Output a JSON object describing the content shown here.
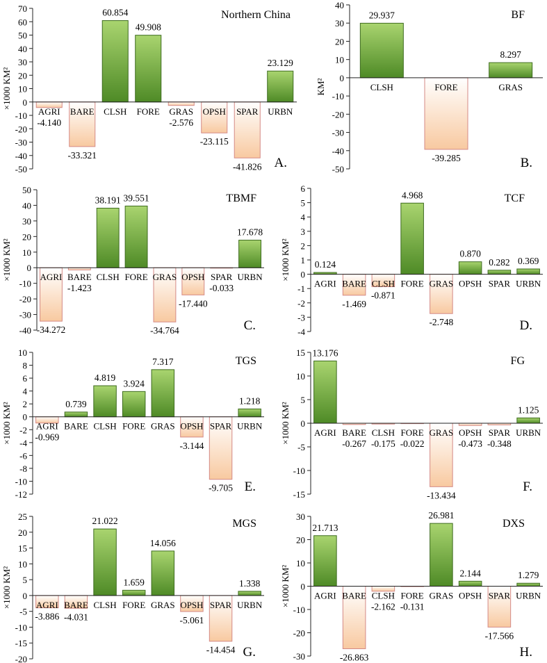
{
  "chart_data": [
    {
      "type": "bar",
      "title": "Northern China",
      "panel_letter": "A.",
      "ylabel": "×1000 KM²",
      "ylim": [
        -50,
        70
      ],
      "ytick_step": 10,
      "categories": [
        "AGRI",
        "BARE",
        "CLSH",
        "FORE",
        "GRAS",
        "OPSH",
        "SPAR",
        "URBN"
      ],
      "values": [
        -4.14,
        -33.321,
        60.854,
        49.908,
        -2.576,
        -23.115,
        -41.826,
        23.129
      ],
      "data_labels": [
        "-4.140",
        "-33.321",
        "60.854",
        "49.908",
        "-2.576",
        "-23.115",
        "-41.826",
        "23.129"
      ]
    },
    {
      "type": "bar",
      "title": "BF",
      "panel_letter": "B.",
      "ylabel": "KM²",
      "ylim": [
        -50,
        40
      ],
      "ytick_step": 10,
      "categories": [
        "CLSH",
        "FORE",
        "GRAS"
      ],
      "values": [
        29.937,
        -39.285,
        8.297
      ],
      "data_labels": [
        "29.937",
        "-39.285",
        "8.297"
      ]
    },
    {
      "type": "bar",
      "title": "TBMF",
      "panel_letter": "C.",
      "ylabel": "×1000 KM²",
      "ylim": [
        -40,
        50
      ],
      "ytick_step": 10,
      "categories": [
        "AGRI",
        "BARE",
        "CLSH",
        "FORE",
        "GRAS",
        "OPSH",
        "SPAR",
        "URBN"
      ],
      "values": [
        -34.272,
        -1.423,
        38.191,
        39.551,
        -34.764,
        -17.44,
        -0.033,
        17.678
      ],
      "data_labels": [
        "-34.272",
        "-1.423",
        "38.191",
        "39.551",
        "-34.764",
        "-17.440",
        "-0.033",
        "17.678"
      ]
    },
    {
      "type": "bar",
      "title": "TCF",
      "panel_letter": "D.",
      "ylabel": "×1000 KM²",
      "ylim": [
        -4,
        6
      ],
      "ytick_step": 1,
      "categories": [
        "AGRI",
        "BARE",
        "CLSH",
        "FORE",
        "GRAS",
        "OPSH",
        "SPAR",
        "URBN"
      ],
      "values": [
        0.124,
        -1.469,
        -0.871,
        4.968,
        -2.748,
        0.87,
        0.282,
        0.369
      ],
      "data_labels": [
        "0.124",
        "-1.469",
        "-0.871",
        "4.968",
        "-2.748",
        "0.870",
        "0.282",
        "0.369"
      ]
    },
    {
      "type": "bar",
      "title": "TGS",
      "panel_letter": "E.",
      "ylabel": "×1000 KM²",
      "ylim": [
        -12,
        10
      ],
      "ytick_step": 2,
      "categories": [
        "AGRI",
        "BARE",
        "CLSH",
        "FORE",
        "GRAS",
        "OPSH",
        "SPAR",
        "URBN"
      ],
      "values": [
        -0.969,
        0.739,
        4.819,
        3.924,
        7.317,
        -3.144,
        -9.705,
        1.218
      ],
      "data_labels": [
        "-0.969",
        "0.739",
        "4.819",
        "3.924",
        "7.317",
        "-3.144",
        "-9.705",
        "1.218"
      ]
    },
    {
      "type": "bar",
      "title": "FG",
      "panel_letter": "F.",
      "ylabel": "×1000 KM²",
      "ylim": [
        -15,
        15
      ],
      "ytick_step": 5,
      "categories": [
        "AGRI",
        "BARE",
        "CLSH",
        "FORE",
        "GRAS",
        "OPSH",
        "SPAR",
        "URBN"
      ],
      "values": [
        13.176,
        -0.267,
        -0.175,
        -0.022,
        -13.434,
        -0.473,
        -0.348,
        1.125
      ],
      "data_labels": [
        "13.176",
        "-0.267",
        "-0.175",
        "-0.022",
        "-13.434",
        "-0.473",
        "-0.348",
        "1.125"
      ]
    },
    {
      "type": "bar",
      "title": "MGS",
      "panel_letter": "G.",
      "ylabel": "×1000 KM²",
      "ylim": [
        -20,
        25
      ],
      "ytick_step": 5,
      "categories": [
        "AGRI",
        "BARE",
        "CLSH",
        "FORE",
        "GRAS",
        "OPSH",
        "SPAR",
        "URBN"
      ],
      "values": [
        -3.886,
        -4.031,
        21.022,
        1.659,
        14.056,
        -5.061,
        -14.454,
        1.338
      ],
      "data_labels": [
        "-3.886",
        "-4.031",
        "21.022",
        "1.659",
        "14.056",
        "-5.061",
        "-14.454",
        "1.338"
      ]
    },
    {
      "type": "bar",
      "title": "DXS",
      "panel_letter": "H.",
      "ylabel": "×1000 KM²",
      "ylim": [
        -30,
        30
      ],
      "ytick_step": 10,
      "categories": [
        "AGRI",
        "BARE",
        "CLSH",
        "FORE",
        "GRAS",
        "OPSH",
        "SPAR",
        "URBN"
      ],
      "values": [
        21.713,
        -26.863,
        -2.162,
        -0.131,
        26.981,
        2.144,
        -17.566,
        1.279
      ],
      "data_labels": [
        "21.713",
        "-26.863",
        "-2.162",
        "-0.131",
        "26.981",
        "2.144",
        "-17.566",
        "1.279"
      ]
    }
  ],
  "colors": {
    "positive_light": "#a9d46f",
    "positive_dark": "#4e8a26",
    "positive_stroke": "#3d6b1f",
    "negative_light": "#ffffff",
    "negative_dark": "#f8c9a0",
    "negative_stroke": "#d48a86",
    "axis": "#222222"
  }
}
